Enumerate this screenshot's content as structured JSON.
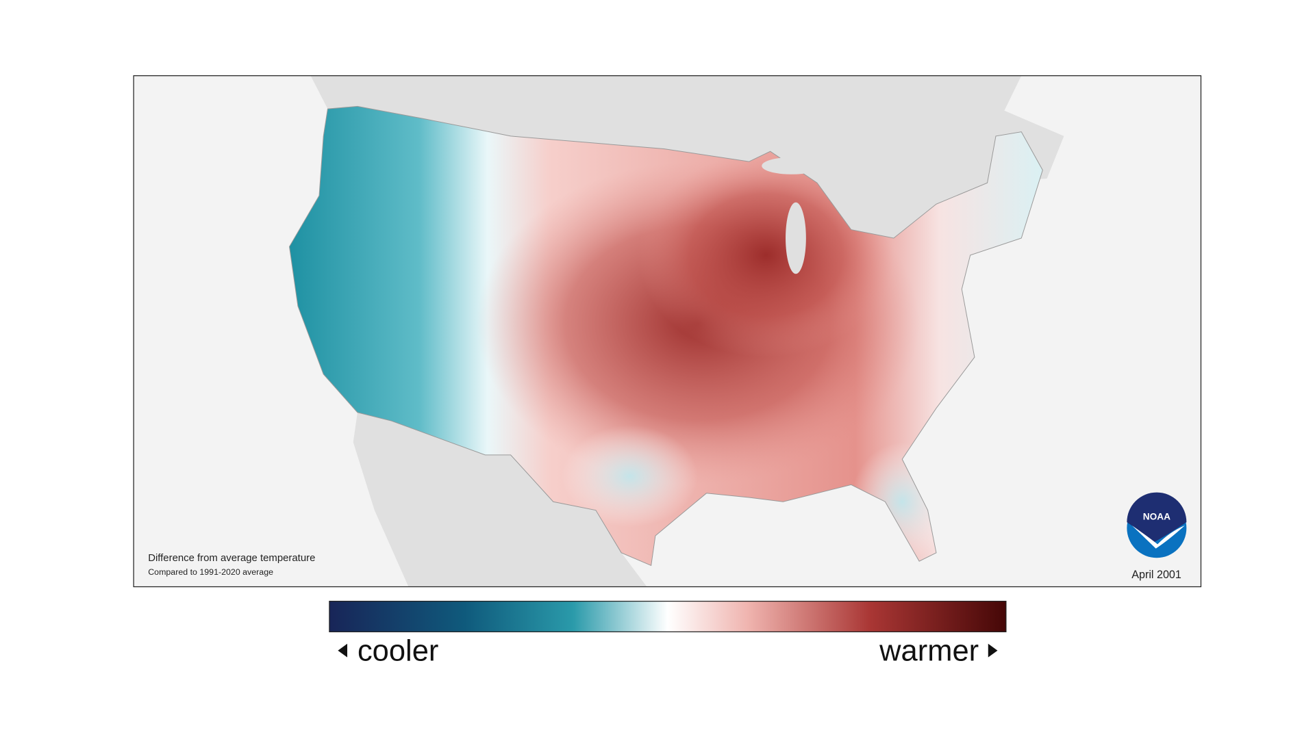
{
  "map": {
    "caption": {
      "title": "Difference from average temperature",
      "subtitle": "Compared to 1991-2020 average"
    },
    "date": "April 2001",
    "logo": "NOAA"
  },
  "legend": {
    "low_label": "cooler",
    "high_label": "warmer"
  }
}
